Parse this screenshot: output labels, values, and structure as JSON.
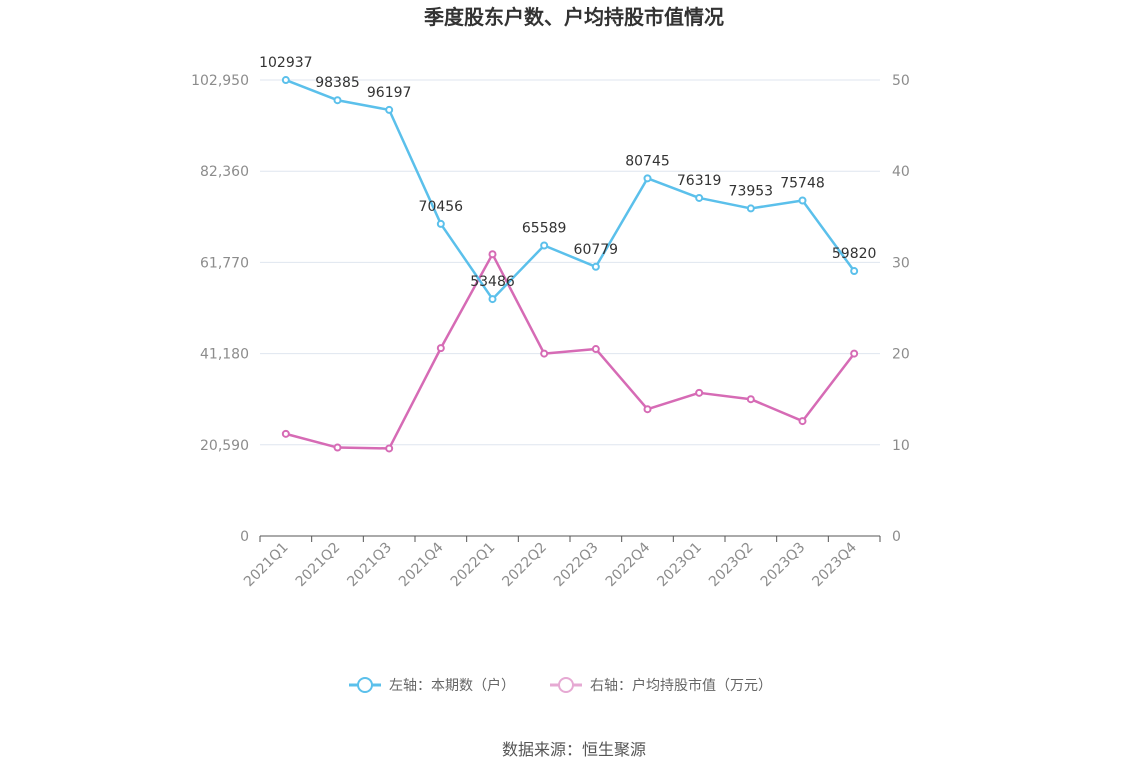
{
  "chart_data": {
    "type": "line",
    "title": "季度股东户数、户均持股市值情况",
    "categories": [
      "2021Q1",
      "2021Q2",
      "2021Q3",
      "2021Q4",
      "2022Q1",
      "2022Q2",
      "2022Q3",
      "2022Q4",
      "2023Q1",
      "2023Q2",
      "2023Q3",
      "2023Q4"
    ],
    "series": [
      {
        "name": "左轴：本期数（户）",
        "axis": "left",
        "color": "#5bc0eb",
        "values": [
          102937,
          98385,
          96197,
          70456,
          53486,
          65589,
          60779,
          80745,
          76319,
          73953,
          75748,
          59820
        ],
        "show_labels": true
      },
      {
        "name": "右轴：户均持股市值（万元）",
        "axis": "right",
        "color": "#d66bb5",
        "values": [
          11.2,
          9.7,
          9.6,
          20.6,
          30.9,
          20.0,
          20.5,
          13.9,
          15.7,
          15.0,
          12.6,
          20.0
        ],
        "show_labels": false
      }
    ],
    "left_axis": {
      "ticks": [
        0,
        20590,
        41180,
        61770,
        82360,
        102950
      ],
      "tick_labels": [
        "0",
        "20,590",
        "41,180",
        "61,770",
        "82,360",
        "102,950"
      ],
      "ylim": [
        0,
        102950
      ]
    },
    "right_axis": {
      "ticks": [
        0,
        10,
        20,
        30,
        40,
        50
      ],
      "tick_labels": [
        "0",
        "10",
        "20",
        "30",
        "40",
        "50"
      ],
      "ylim": [
        0,
        50
      ]
    },
    "grid": true,
    "legend_position": "bottom"
  },
  "source": "数据来源：恒生聚源"
}
